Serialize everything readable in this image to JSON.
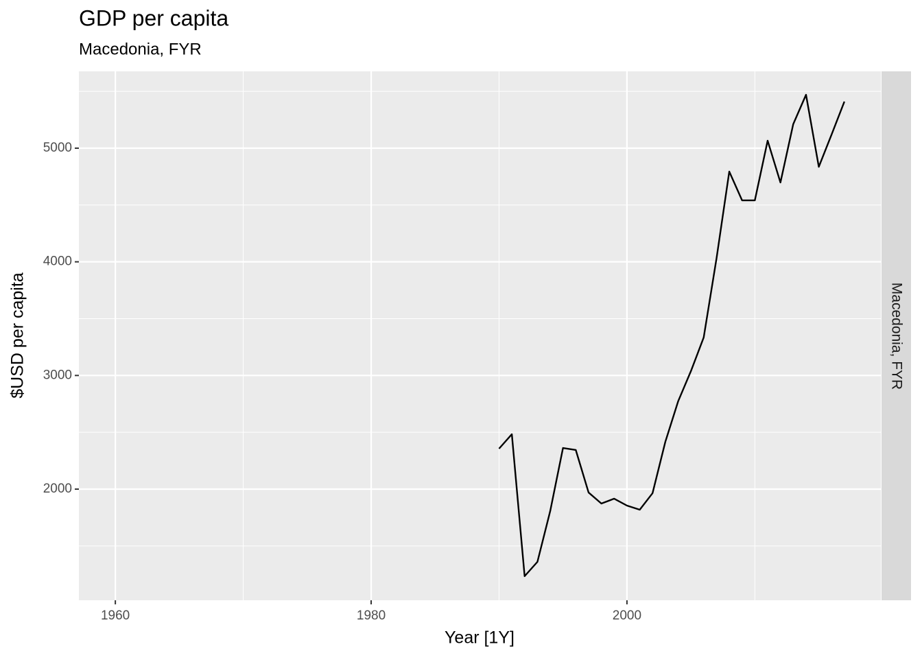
{
  "chart_data": {
    "type": "line",
    "title": "GDP per capita",
    "subtitle": "Macedonia, FYR",
    "facet_label": "Macedonia, FYR",
    "x_label": "Year [1Y]",
    "y_label": "$USD per capita",
    "x": [
      1990,
      1991,
      1992,
      1993,
      1994,
      1995,
      1996,
      1997,
      1998,
      1999,
      2000,
      2001,
      2002,
      2003,
      2004,
      2005,
      2006,
      2007,
      2008,
      2009,
      2010,
      2011,
      2012,
      2013,
      2014,
      2015,
      2016,
      2017
    ],
    "series": [
      {
        "name": "Macedonia, FYR",
        "color": "#000000",
        "values": [
          2356,
          2483,
          1234,
          1360,
          1807,
          2362,
          2344,
          1970,
          1873,
          1916,
          1855,
          1819,
          1964,
          2416,
          2772,
          3038,
          3334,
          4028,
          4794,
          4541,
          4541,
          5066,
          4698,
          5211,
          5470,
          4836,
          5120,
          5410
        ]
      }
    ],
    "xlim": [
      1957.15,
      2019.85
    ],
    "xticks": [
      1960,
      1980,
      2000
    ],
    "ylim": [
      1022,
      5676
    ],
    "yticks": [
      2000,
      3000,
      4000,
      5000
    ],
    "grid": true
  }
}
